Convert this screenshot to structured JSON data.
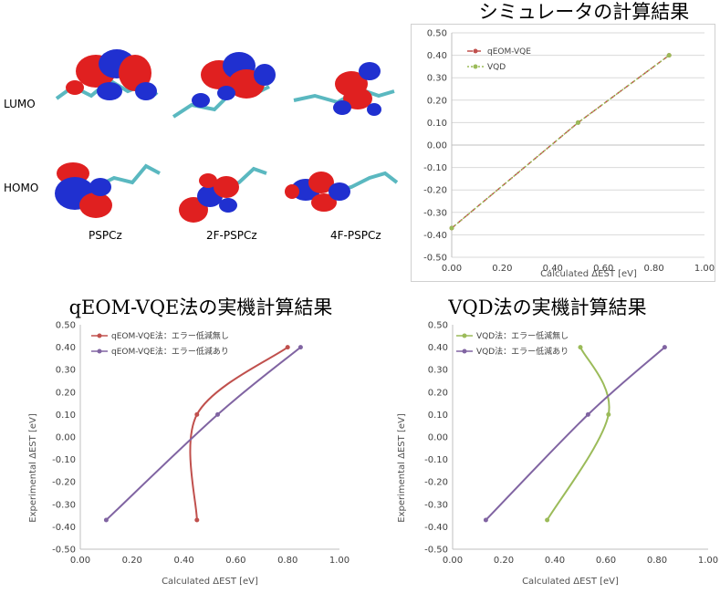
{
  "orbitals": {
    "row_labels": [
      "LUMO",
      "HOMO"
    ],
    "molecule_labels": [
      "PSPCz",
      "2F-PSPCz",
      "4F-PSPCz"
    ],
    "colors": {
      "positive": "#e02020",
      "negative": "#2030d0",
      "skeleton": "#5ab8c0"
    }
  },
  "chart_data": [
    {
      "type": "line",
      "title": "シミュレータの計算結果",
      "xlabel": "Calculated ΔEST  [eV]",
      "ylabel": "",
      "xlim": [
        0,
        1.0
      ],
      "ylim": [
        -0.5,
        0.5
      ],
      "xticks": [
        "0.00",
        "0.20",
        "0.40",
        "0.60",
        "0.80",
        "1.00"
      ],
      "yticks": [
        "0.50",
        "0.40",
        "0.30",
        "0.20",
        "0.10",
        "0.00",
        "-0.10",
        "-0.20",
        "-0.30",
        "-0.40",
        "-0.50"
      ],
      "grid": true,
      "legend": "top-left",
      "series": [
        {
          "name": "qEOM-VQE",
          "x": [
            0.0,
            0.5,
            0.86
          ],
          "y": [
            -0.37,
            0.1,
            0.4
          ],
          "color": "#c0504d",
          "dash": "6,3"
        },
        {
          "name": "VQD",
          "x": [
            0.0,
            0.5,
            0.86
          ],
          "y": [
            -0.37,
            0.1,
            0.4
          ],
          "color": "#9bbb59",
          "dash": "2,2"
        }
      ]
    },
    {
      "type": "line",
      "title": "qEOM-VQE法の実機計算結果",
      "xlabel": "Calculated ΔEST [eV]",
      "ylabel": "Experimental ΔEST [eV]",
      "xlim": [
        0,
        1.0
      ],
      "ylim": [
        -0.5,
        0.5
      ],
      "xticks": [
        "0.00",
        "0.20",
        "0.40",
        "0.60",
        "0.80",
        "1.00"
      ],
      "yticks": [
        "0.50",
        "0.40",
        "0.30",
        "0.20",
        "0.10",
        "0.00",
        "-0.10",
        "-0.20",
        "-0.30",
        "-0.40",
        "-0.50"
      ],
      "grid": false,
      "legend": "top-left",
      "series": [
        {
          "name": "qEOM-VQE法：エラー低減無し",
          "x": [
            0.45,
            0.45,
            0.8
          ],
          "y": [
            -0.37,
            0.1,
            0.4
          ],
          "color": "#c0504d"
        },
        {
          "name": "qEOM-VQE法：エラー低減あり",
          "x": [
            0.1,
            0.53,
            0.85
          ],
          "y": [
            -0.37,
            0.1,
            0.4
          ],
          "color": "#8064a2"
        }
      ]
    },
    {
      "type": "line",
      "title": "VQD法の実機計算結果",
      "xlabel": "Calculated ΔEST [eV]",
      "ylabel": "Experimental ΔEST [eV]",
      "xlim": [
        0,
        1.0
      ],
      "ylim": [
        -0.5,
        0.5
      ],
      "xticks": [
        "0.00",
        "0.20",
        "0.40",
        "0.60",
        "0.80",
        "1.00"
      ],
      "yticks": [
        "0.50",
        "0.40",
        "0.30",
        "0.20",
        "0.10",
        "0.00",
        "-0.10",
        "-0.20",
        "-0.30",
        "-0.40",
        "-0.50"
      ],
      "grid": false,
      "legend": "top-left",
      "series": [
        {
          "name": "VQD法：エラー低減無し",
          "x": [
            0.37,
            0.61,
            0.5
          ],
          "y": [
            -0.37,
            0.1,
            0.4
          ],
          "color": "#9bbb59"
        },
        {
          "name": "VQD法：エラー低減あり",
          "x": [
            0.13,
            0.53,
            0.83
          ],
          "y": [
            -0.37,
            0.1,
            0.4
          ],
          "color": "#8064a2"
        }
      ]
    }
  ]
}
